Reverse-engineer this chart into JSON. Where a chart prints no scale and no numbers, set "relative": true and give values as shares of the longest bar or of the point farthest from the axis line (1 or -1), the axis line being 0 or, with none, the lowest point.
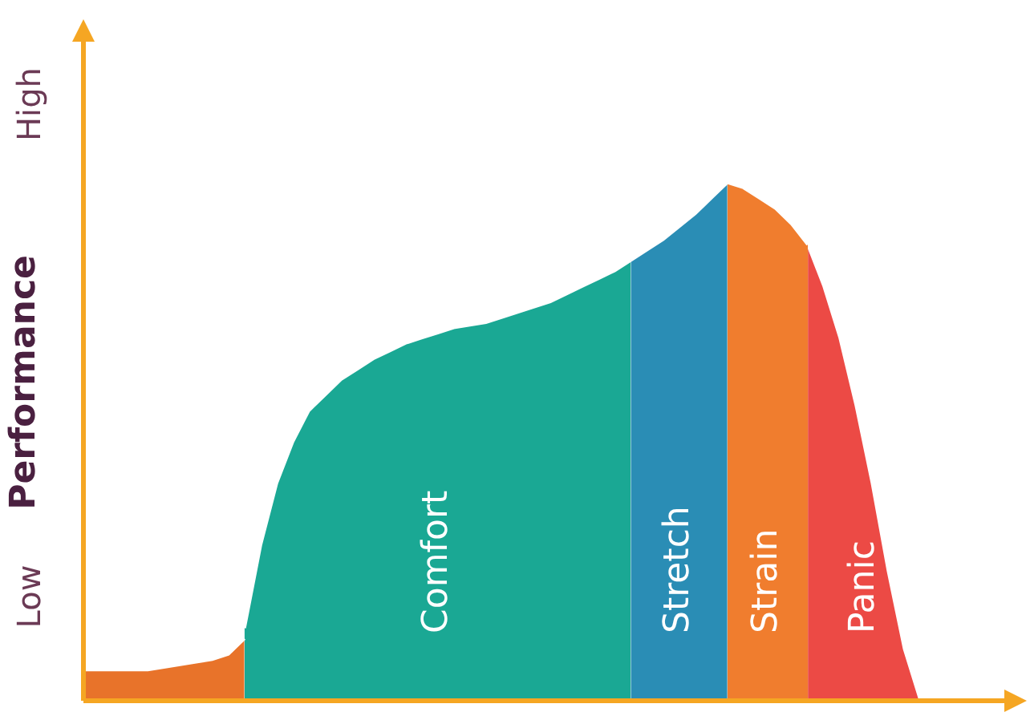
{
  "chart_data": {
    "type": "area",
    "relative": true,
    "ylabel": "Performance",
    "annotations": [
      "Low",
      "High"
    ],
    "legend": false,
    "categories": [
      null,
      null,
      null,
      null,
      null,
      null,
      null,
      null,
      null,
      null,
      null,
      null,
      null,
      null,
      null,
      null,
      null,
      null,
      null,
      null,
      null,
      null,
      null,
      null,
      null,
      null,
      null,
      null,
      null,
      null,
      null,
      null,
      null,
      null,
      null,
      null,
      null,
      null,
      null,
      null,
      null,
      null,
      null,
      null,
      null,
      null,
      null,
      null,
      null,
      null,
      null,
      null,
      null,
      null,
      null,
      null,
      null,
      null,
      null
    ],
    "series": [
      {
        "color": "#e8732a",
        "values": [
          0.06,
          0.06,
          0.06,
          0.06,
          0.06,
          0.065,
          0.07,
          0.075,
          0.08,
          0.09,
          0.12,
          null,
          null,
          null,
          null,
          null,
          null,
          null,
          null,
          null,
          null,
          null,
          null,
          null,
          null,
          null,
          null,
          null,
          null,
          null,
          null,
          null,
          null,
          null,
          null,
          null,
          null,
          null,
          null,
          null,
          null,
          null,
          null,
          null,
          null,
          null,
          null,
          null,
          null,
          null,
          null,
          null,
          null,
          null,
          null,
          null,
          null,
          null,
          null
        ]
      },
      {
        "name": "Comfort",
        "color": "#1aa894",
        "values": [
          null,
          null,
          null,
          null,
          null,
          null,
          null,
          null,
          null,
          null,
          0.14,
          0.3,
          0.42,
          0.5,
          0.56,
          0.59,
          0.62,
          0.64,
          0.66,
          0.675,
          0.69,
          0.7,
          0.71,
          0.72,
          0.725,
          0.73,
          0.74,
          0.75,
          0.76,
          0.77,
          0.785,
          0.8,
          0.815,
          0.83,
          0.85,
          null,
          null,
          null,
          null,
          null,
          null,
          null,
          null,
          null,
          null,
          null,
          null,
          null,
          null,
          null,
          null,
          null,
          null,
          null,
          null,
          null,
          null,
          null,
          null
        ]
      },
      {
        "name": "Stretch",
        "color": "#2a8db5",
        "values": [
          null,
          null,
          null,
          null,
          null,
          null,
          null,
          null,
          null,
          null,
          null,
          null,
          null,
          null,
          null,
          null,
          null,
          null,
          null,
          null,
          null,
          null,
          null,
          null,
          null,
          null,
          null,
          null,
          null,
          null,
          null,
          null,
          null,
          null,
          0.85,
          0.87,
          0.89,
          0.915,
          0.94,
          0.97,
          1,
          null,
          null,
          null,
          null,
          null,
          null,
          null,
          null,
          null,
          null,
          null,
          null,
          null,
          null,
          null,
          null,
          null,
          null
        ]
      },
      {
        "name": "Strain",
        "color": "#f07d2e",
        "values": [
          null,
          null,
          null,
          null,
          null,
          null,
          null,
          null,
          null,
          null,
          null,
          null,
          null,
          null,
          null,
          null,
          null,
          null,
          null,
          null,
          null,
          null,
          null,
          null,
          null,
          null,
          null,
          null,
          null,
          null,
          null,
          null,
          null,
          null,
          null,
          null,
          null,
          null,
          null,
          null,
          1,
          0.99,
          0.97,
          0.95,
          0.92,
          0.88,
          null,
          null,
          null,
          null,
          null,
          null,
          null,
          null,
          null,
          null,
          null,
          null,
          null
        ]
      },
      {
        "name": "Panic",
        "color": "#ec4a45",
        "values": [
          null,
          null,
          null,
          null,
          null,
          null,
          null,
          null,
          null,
          null,
          null,
          null,
          null,
          null,
          null,
          null,
          null,
          null,
          null,
          null,
          null,
          null,
          null,
          null,
          null,
          null,
          null,
          null,
          null,
          null,
          null,
          null,
          null,
          null,
          null,
          null,
          null,
          null,
          null,
          null,
          null,
          null,
          null,
          null,
          null,
          0.88,
          0.8,
          0.7,
          0.57,
          0.42,
          0.25,
          0.1,
          0,
          null,
          null,
          null,
          null,
          null,
          null
        ]
      }
    ]
  }
}
